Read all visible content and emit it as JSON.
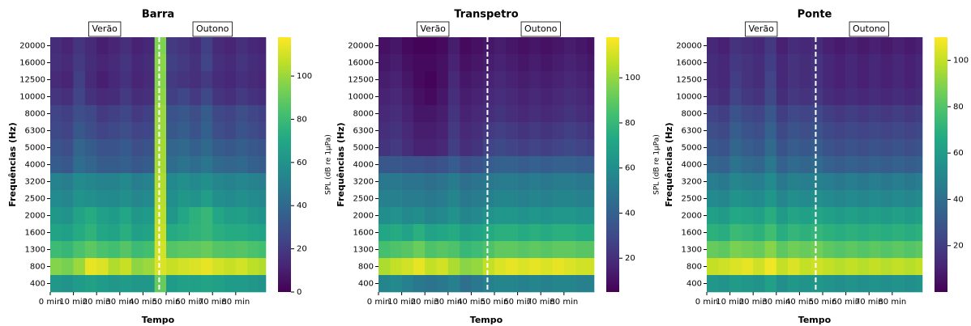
{
  "chart_data": [
    {
      "type": "heatmap",
      "title": "Barra",
      "xlabel": "Tempo",
      "ylabel": "Frequências (Hz)",
      "colorbar_label": "SPL (dB re 1µPa)",
      "rows": [
        "20000",
        "16000",
        "12500",
        "10000",
        "8000",
        "6300",
        "5000",
        "4000",
        "3200",
        "2500",
        "2000",
        "1600",
        "1300",
        "800",
        "400"
      ],
      "x_edges": [
        0,
        5,
        10,
        15,
        20,
        25,
        30,
        35,
        40,
        45,
        50,
        55,
        60,
        65,
        70,
        75,
        80,
        85,
        90,
        93
      ],
      "xlim": [
        0,
        93
      ],
      "xticks": [
        {
          "value": 0,
          "label": "0 min"
        },
        {
          "value": 10,
          "label": "10 min"
        },
        {
          "value": 20,
          "label": "20 min"
        },
        {
          "value": 30,
          "label": "30 min"
        },
        {
          "value": 40,
          "label": "40 min"
        },
        {
          "value": 50,
          "label": "50 min"
        },
        {
          "value": 60,
          "label": "60 min"
        },
        {
          "value": 70,
          "label": "70 min"
        },
        {
          "value": 80,
          "label": "80 min"
        }
      ],
      "divider": 47,
      "seasons": [
        "Verão",
        "Outono"
      ],
      "clim": [
        0,
        118
      ],
      "cticks": [
        0,
        20,
        40,
        60,
        80,
        100
      ],
      "z": [
        [
          15,
          12,
          18,
          14,
          10,
          12,
          16,
          11,
          13,
          95,
          20,
          18,
          15,
          22,
          14,
          12,
          16,
          13,
          11
        ],
        [
          16,
          14,
          20,
          15,
          12,
          14,
          18,
          13,
          15,
          97,
          22,
          20,
          17,
          24,
          16,
          14,
          18,
          15,
          13
        ],
        [
          14,
          12,
          22,
          14,
          10,
          13,
          17,
          12,
          14,
          96,
          20,
          18,
          16,
          20,
          15,
          13,
          16,
          14,
          12
        ],
        [
          18,
          16,
          24,
          17,
          14,
          15,
          20,
          15,
          16,
          98,
          22,
          25,
          20,
          26,
          18,
          16,
          20,
          17,
          15
        ],
        [
          24,
          22,
          28,
          26,
          20,
          22,
          25,
          20,
          22,
          100,
          30,
          32,
          28,
          34,
          26,
          24,
          28,
          25,
          22
        ],
        [
          26,
          24,
          32,
          28,
          24,
          26,
          28,
          24,
          25,
          100,
          32,
          35,
          30,
          36,
          28,
          26,
          30,
          27,
          24
        ],
        [
          30,
          28,
          38,
          34,
          30,
          30,
          33,
          28,
          30,
          102,
          38,
          40,
          36,
          40,
          34,
          32,
          35,
          32,
          30
        ],
        [
          34,
          32,
          42,
          38,
          34,
          34,
          36,
          32,
          34,
          102,
          42,
          45,
          42,
          46,
          40,
          38,
          40,
          36,
          34
        ],
        [
          52,
          50,
          56,
          54,
          52,
          52,
          55,
          50,
          52,
          104,
          55,
          58,
          55,
          58,
          54,
          52,
          54,
          52,
          50
        ],
        [
          56,
          54,
          60,
          58,
          56,
          55,
          58,
          54,
          56,
          105,
          58,
          62,
          60,
          65,
          58,
          56,
          58,
          56,
          54
        ],
        [
          62,
          60,
          68,
          72,
          66,
          64,
          70,
          62,
          64,
          106,
          62,
          70,
          75,
          78,
          70,
          65,
          66,
          62,
          60
        ],
        [
          68,
          66,
          72,
          76,
          70,
          68,
          74,
          66,
          68,
          108,
          72,
          74,
          76,
          78,
          74,
          72,
          72,
          70,
          68
        ],
        [
          80,
          78,
          84,
          88,
          84,
          82,
          86,
          80,
          82,
          110,
          86,
          88,
          88,
          90,
          86,
          85,
          86,
          84,
          82
        ],
        [
          96,
          94,
          100,
          114,
          112,
          104,
          108,
          98,
          100,
          112,
          108,
          110,
          112,
          114,
          110,
          108,
          110,
          106,
          104
        ],
        [
          62,
          60,
          64,
          66,
          64,
          62,
          64,
          62,
          62,
          90,
          64,
          66,
          66,
          68,
          66,
          64,
          64,
          62,
          60
        ]
      ]
    },
    {
      "type": "heatmap",
      "title": "Transpetro",
      "xlabel": "Tempo",
      "ylabel": "Frequências (Hz)",
      "colorbar_label": "SPL (dB re 1µPa)",
      "rows": [
        "20000",
        "16000",
        "12500",
        "10000",
        "8000",
        "6300",
        "5000",
        "4000",
        "3200",
        "2500",
        "2000",
        "1600",
        "1300",
        "800",
        "400"
      ],
      "x_edges": [
        0,
        5,
        10,
        15,
        20,
        25,
        30,
        35,
        40,
        45,
        50,
        55,
        60,
        65,
        70,
        75,
        80,
        85,
        90,
        93
      ],
      "xlim": [
        0,
        93
      ],
      "xticks": [
        {
          "value": 0,
          "label": "0 min"
        },
        {
          "value": 10,
          "label": "10 min"
        },
        {
          "value": 20,
          "label": "20 min"
        },
        {
          "value": 30,
          "label": "30 min"
        },
        {
          "value": 40,
          "label": "40 min"
        },
        {
          "value": 50,
          "label": "50 min"
        },
        {
          "value": 60,
          "label": "60 min"
        },
        {
          "value": 70,
          "label": "70 min"
        },
        {
          "value": 80,
          "label": "80 min"
        }
      ],
      "divider": 47,
      "seasons": [
        "Verão",
        "Outono"
      ],
      "clim": [
        5,
        118
      ],
      "cticks": [
        20,
        40,
        60,
        80,
        100
      ],
      "z": [
        [
          10,
          12,
          8,
          6,
          6,
          8,
          14,
          8,
          10,
          12,
          14,
          12,
          10,
          12,
          10,
          12,
          14,
          12,
          10
        ],
        [
          12,
          14,
          10,
          8,
          8,
          10,
          16,
          10,
          12,
          14,
          16,
          14,
          12,
          14,
          12,
          14,
          16,
          14,
          12
        ],
        [
          14,
          16,
          12,
          8,
          6,
          10,
          18,
          12,
          14,
          16,
          18,
          16,
          14,
          16,
          14,
          16,
          18,
          16,
          14
        ],
        [
          16,
          18,
          14,
          10,
          8,
          12,
          20,
          14,
          16,
          18,
          20,
          18,
          16,
          18,
          16,
          18,
          20,
          18,
          16
        ],
        [
          18,
          20,
          16,
          12,
          12,
          14,
          22,
          16,
          18,
          20,
          22,
          20,
          18,
          20,
          18,
          20,
          22,
          20,
          18
        ],
        [
          20,
          22,
          18,
          14,
          14,
          16,
          24,
          18,
          20,
          24,
          26,
          24,
          22,
          24,
          22,
          24,
          26,
          24,
          22
        ],
        [
          22,
          24,
          20,
          16,
          16,
          18,
          26,
          20,
          22,
          28,
          30,
          28,
          26,
          28,
          26,
          28,
          30,
          28,
          26
        ],
        [
          36,
          36,
          34,
          34,
          32,
          34,
          38,
          32,
          34,
          38,
          40,
          40,
          38,
          40,
          38,
          40,
          40,
          38,
          38
        ],
        [
          50,
          50,
          48,
          48,
          46,
          48,
          52,
          46,
          48,
          50,
          52,
          52,
          50,
          52,
          50,
          52,
          52,
          50,
          50
        ],
        [
          54,
          54,
          52,
          52,
          50,
          52,
          56,
          50,
          52,
          54,
          56,
          56,
          54,
          56,
          54,
          56,
          56,
          54,
          54
        ],
        [
          60,
          62,
          58,
          60,
          56,
          58,
          62,
          56,
          58,
          62,
          64,
          64,
          62,
          64,
          62,
          64,
          64,
          62,
          62
        ],
        [
          72,
          74,
          70,
          76,
          70,
          72,
          74,
          68,
          70,
          74,
          76,
          76,
          74,
          76,
          74,
          76,
          76,
          74,
          74
        ],
        [
          84,
          86,
          88,
          92,
          86,
          88,
          86,
          80,
          82,
          86,
          90,
          90,
          88,
          90,
          88,
          90,
          90,
          88,
          88
        ],
        [
          104,
          108,
          110,
          114,
          108,
          110,
          104,
          98,
          100,
          108,
          112,
          114,
          112,
          114,
          112,
          114,
          112,
          110,
          110
        ],
        [
          56,
          58,
          54,
          50,
          48,
          50,
          54,
          46,
          50,
          54,
          56,
          56,
          54,
          56,
          54,
          56,
          56,
          54,
          54
        ]
      ]
    },
    {
      "type": "heatmap",
      "title": "Ponte",
      "xlabel": "Tempo",
      "ylabel": "Frequências (Hz)",
      "rows": [
        "20000",
        "16000",
        "12500",
        "10000",
        "8000",
        "6300",
        "5000",
        "4000",
        "3200",
        "2500",
        "2000",
        "1600",
        "1300",
        "800",
        "400"
      ],
      "x_edges": [
        0,
        5,
        10,
        15,
        20,
        25,
        30,
        35,
        40,
        45,
        50,
        55,
        60,
        65,
        70,
        75,
        80,
        85,
        90,
        93
      ],
      "xlim": [
        0,
        93
      ],
      "xticks": [
        {
          "value": 0,
          "label": "0 min"
        },
        {
          "value": 10,
          "label": "10 min"
        },
        {
          "value": 20,
          "label": "20 min"
        },
        {
          "value": 30,
          "label": "30 min"
        },
        {
          "value": 40,
          "label": "40 min"
        },
        {
          "value": 50,
          "label": "50 min"
        },
        {
          "value": 60,
          "label": "60 min"
        },
        {
          "value": 70,
          "label": "70 min"
        },
        {
          "value": 80,
          "label": "80 min"
        }
      ],
      "divider": 47,
      "seasons": [
        "Verão",
        "Outono"
      ],
      "clim": [
        0,
        110
      ],
      "cticks": [
        20,
        40,
        60,
        80,
        100
      ],
      "z": [
        [
          12,
          10,
          16,
          14,
          12,
          18,
          10,
          14,
          12,
          14,
          10,
          8,
          10,
          8,
          10,
          8,
          10,
          8,
          10
        ],
        [
          14,
          12,
          18,
          16,
          14,
          20,
          12,
          16,
          14,
          16,
          12,
          10,
          12,
          10,
          12,
          10,
          12,
          10,
          12
        ],
        [
          14,
          12,
          20,
          16,
          14,
          22,
          12,
          16,
          14,
          16,
          12,
          10,
          12,
          10,
          12,
          10,
          12,
          10,
          12
        ],
        [
          16,
          14,
          22,
          18,
          16,
          24,
          14,
          18,
          16,
          18,
          14,
          12,
          14,
          12,
          14,
          12,
          14,
          12,
          14
        ],
        [
          22,
          20,
          28,
          24,
          22,
          30,
          20,
          24,
          22,
          24,
          20,
          18,
          20,
          18,
          20,
          18,
          20,
          18,
          20
        ],
        [
          26,
          24,
          32,
          28,
          26,
          34,
          24,
          28,
          26,
          28,
          24,
          22,
          24,
          22,
          24,
          22,
          24,
          22,
          24
        ],
        [
          30,
          28,
          36,
          32,
          30,
          38,
          28,
          32,
          30,
          32,
          28,
          26,
          28,
          26,
          28,
          26,
          28,
          26,
          28
        ],
        [
          36,
          34,
          42,
          38,
          36,
          44,
          34,
          38,
          36,
          38,
          34,
          32,
          34,
          32,
          34,
          32,
          34,
          32,
          34
        ],
        [
          46,
          44,
          50,
          48,
          46,
          52,
          44,
          48,
          46,
          48,
          46,
          44,
          46,
          44,
          46,
          44,
          46,
          44,
          46
        ],
        [
          52,
          50,
          56,
          54,
          52,
          58,
          50,
          54,
          52,
          54,
          52,
          50,
          52,
          50,
          52,
          50,
          52,
          50,
          52
        ],
        [
          62,
          60,
          66,
          64,
          62,
          68,
          60,
          64,
          62,
          64,
          62,
          60,
          62,
          60,
          62,
          60,
          62,
          60,
          62
        ],
        [
          70,
          68,
          74,
          72,
          70,
          76,
          68,
          72,
          70,
          72,
          70,
          68,
          70,
          68,
          70,
          68,
          70,
          68,
          70
        ],
        [
          84,
          82,
          88,
          86,
          84,
          90,
          82,
          86,
          84,
          86,
          82,
          80,
          82,
          80,
          82,
          80,
          82,
          80,
          82
        ],
        [
          100,
          102,
          104,
          106,
          102,
          108,
          100,
          104,
          100,
          102,
          100,
          98,
          100,
          98,
          100,
          98,
          100,
          98,
          100
        ],
        [
          58,
          56,
          60,
          58,
          56,
          62,
          54,
          58,
          56,
          58,
          56,
          54,
          56,
          54,
          56,
          54,
          56,
          54,
          56
        ]
      ]
    }
  ]
}
